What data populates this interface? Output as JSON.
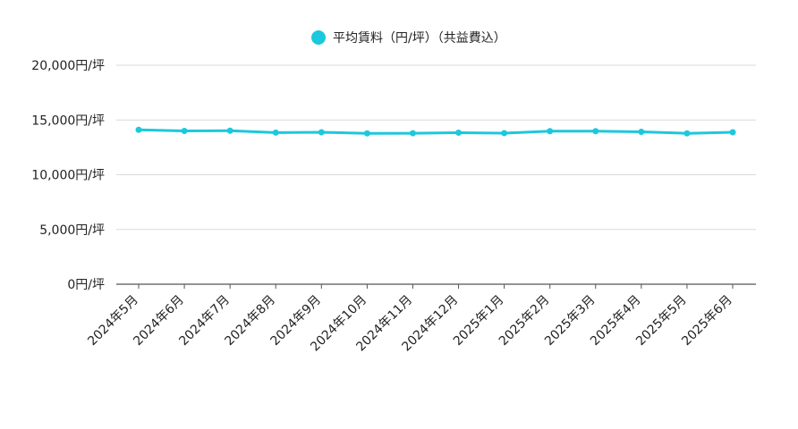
{
  "chart_data": {
    "type": "line",
    "title": "",
    "xlabel": "",
    "ylabel": "",
    "categories": [
      "2024年5月",
      "2024年6月",
      "2024年7月",
      "2024年8月",
      "2024年9月",
      "2024年10月",
      "2024年11月",
      "2024年12月",
      "2025年1月",
      "2025年2月",
      "2025年3月",
      "2025年4月",
      "2025年5月",
      "2025年6月"
    ],
    "series": [
      {
        "name": "平均賃料（円/坪）（共益費込）",
        "color": "#1cc8dd",
        "values": [
          14100,
          14000,
          14020,
          13850,
          13880,
          13780,
          13790,
          13840,
          13800,
          13980,
          13980,
          13920,
          13780,
          13880
        ]
      }
    ],
    "ylim": [
      0,
      20000
    ],
    "yticks": [
      0,
      5000,
      10000,
      15000,
      20000
    ],
    "ytick_labels": [
      "0円/坪",
      "5,000円/坪",
      "10,000円/坪",
      "15,000円/坪",
      "20,000円/坪"
    ],
    "grid": true,
    "legend_position": "top-center"
  }
}
